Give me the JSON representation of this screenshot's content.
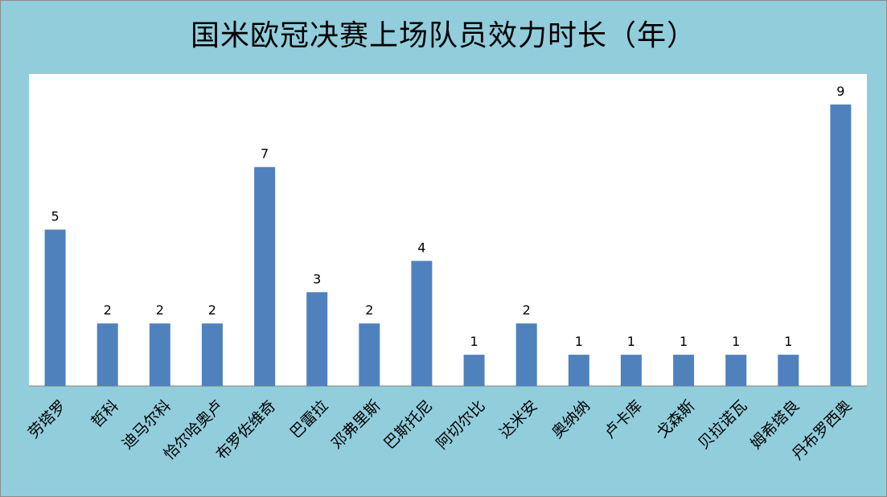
{
  "chart_data": {
    "type": "bar",
    "title": "国米欧冠决赛上场队员效力时长（年）",
    "categories": [
      "劳塔罗",
      "哲科",
      "迪马尔科",
      "恰尔哈奥卢",
      "布罗佐维奇",
      "巴雷拉",
      "邓弗里斯",
      "巴斯托尼",
      "阿切尔比",
      "达米安",
      "奥纳纳",
      "卢卡库",
      "戈森斯",
      "贝拉诺瓦",
      "姆希塔良",
      "丹布罗西奥"
    ],
    "values": [
      5,
      2,
      2,
      2,
      7,
      3,
      2,
      4,
      1,
      2,
      1,
      1,
      1,
      1,
      1,
      9
    ],
    "ylim": [
      0,
      10
    ],
    "grid": false,
    "legend": "none",
    "bar_color": "#4f81bd",
    "plot_background": "#ffffff",
    "chart_background": "#92cddc"
  }
}
